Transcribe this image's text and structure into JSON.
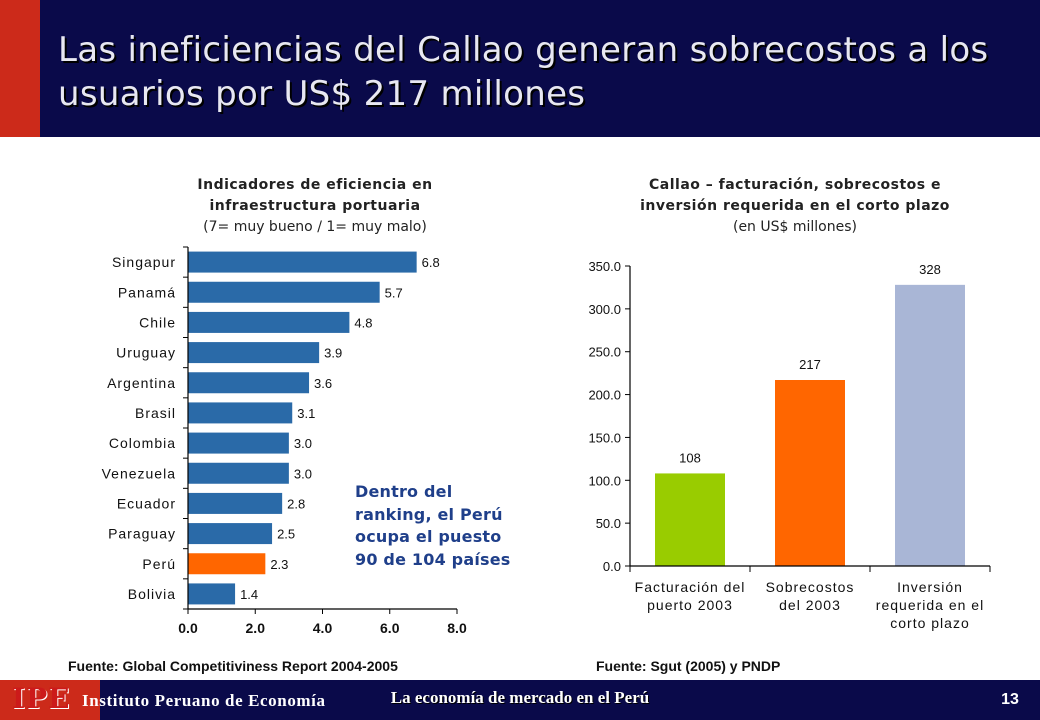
{
  "slide": {
    "title": "Las ineficiencias del Callao generan sobrecostos a los usuarios por US$ 217 millones",
    "note": "Dentro del ranking, el Perú ocupa el puesto 90 de 104 países",
    "footer": {
      "logo": "IPE",
      "institute": "Instituto Peruano de Economía",
      "slogan": "La economía de mercado en el Perú",
      "page": "13"
    }
  },
  "chart_data": [
    {
      "type": "bar",
      "orientation": "horizontal",
      "title": "Indicadores de eficiencia en infraestructura portuaria",
      "subtitle": "(7= muy bueno / 1= muy malo)",
      "categories": [
        "Singapur",
        "Panamá",
        "Chile",
        "Uruguay",
        "Argentina",
        "Brasil",
        "Colombia",
        "Venezuela",
        "Ecuador",
        "Paraguay",
        "Perú",
        "Bolivia"
      ],
      "values": [
        6.8,
        5.7,
        4.8,
        3.9,
        3.6,
        3.1,
        3.0,
        3.0,
        2.8,
        2.5,
        2.3,
        1.4
      ],
      "value_labels": [
        "6.8",
        "5.7",
        "4.8",
        "3.9",
        "3.6",
        "3.1",
        "3.0",
        "3.0",
        "2.8",
        "2.5",
        "2.3",
        "1.4"
      ],
      "xlim": [
        0,
        8
      ],
      "xticks": [
        "0.0",
        "2.0",
        "4.0",
        "6.0",
        "8.0"
      ],
      "bar_color": "#2a6aa8",
      "highlight": {
        "category": "Perú",
        "color": "#ff6600"
      },
      "source": "Fuente: Global Competitiviness Report 2004-2005"
    },
    {
      "type": "bar",
      "title": "Callao – facturación, sobrecostos e inversión requerida en el corto plazo",
      "subtitle": "(en US$ millones)",
      "categories": [
        [
          "Facturación del",
          "puerto 2003"
        ],
        [
          "Sobrecostos",
          "del 2003"
        ],
        [
          "Inversión",
          "requerida en el",
          "corto plazo"
        ]
      ],
      "values": [
        108,
        217,
        328
      ],
      "value_labels": [
        "108",
        "217",
        "328"
      ],
      "colors": [
        "#99cc00",
        "#ff6600",
        "#a9b6d6"
      ],
      "ylim": [
        0,
        350
      ],
      "yticks": [
        "0.0",
        "50.0",
        "100.0",
        "150.0",
        "200.0",
        "250.0",
        "300.0",
        "350.0"
      ],
      "source": "Fuente: Sgut (2005) y PNDP"
    }
  ]
}
